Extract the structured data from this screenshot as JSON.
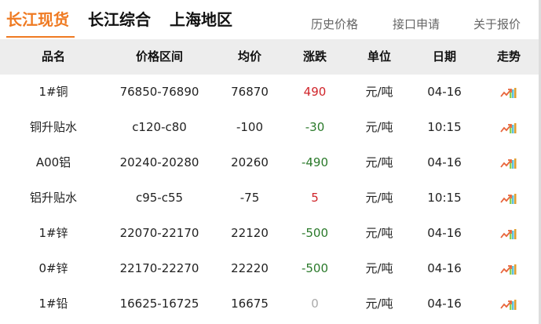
{
  "tabs": [
    "长江现货",
    "长江综合",
    "上海地区"
  ],
  "links": [
    "历史价格",
    "接口申请",
    "关于报价"
  ],
  "columns": [
    "品名",
    "价格区间",
    "均价",
    "涨跌",
    "单位",
    "日期",
    "走势"
  ],
  "colors": {
    "accent": "#ef7a22",
    "up": "#d0242a",
    "down": "#2b7a2b",
    "flat": "#aaaaaa"
  },
  "rows": [
    {
      "name": "1#铜",
      "range": "76850-76890",
      "avg": "76870",
      "change": "490",
      "dir": "up",
      "unit": "元/吨",
      "date": "04-16",
      "trend": "trend-chart-icon"
    },
    {
      "name": "铜升贴水",
      "range": "c120-c80",
      "avg": "-100",
      "change": "-30",
      "dir": "down",
      "unit": "元/吨",
      "date": "10:15",
      "trend": "trend-chart-icon"
    },
    {
      "name": "A00铝",
      "range": "20240-20280",
      "avg": "20260",
      "change": "-490",
      "dir": "down",
      "unit": "元/吨",
      "date": "04-16",
      "trend": "trend-chart-icon"
    },
    {
      "name": "铝升贴水",
      "range": "c95-c55",
      "avg": "-75",
      "change": "5",
      "dir": "up",
      "unit": "元/吨",
      "date": "10:15",
      "trend": "trend-chart-icon"
    },
    {
      "name": "1#锌",
      "range": "22070-22170",
      "avg": "22120",
      "change": "-500",
      "dir": "down",
      "unit": "元/吨",
      "date": "04-16",
      "trend": "trend-chart-icon"
    },
    {
      "name": "0#锌",
      "range": "22170-22270",
      "avg": "22220",
      "change": "-500",
      "dir": "down",
      "unit": "元/吨",
      "date": "04-16",
      "trend": "trend-chart-icon"
    },
    {
      "name": "1#铅",
      "range": "16625-16725",
      "avg": "16675",
      "change": "0",
      "dir": "flat",
      "unit": "元/吨",
      "date": "04-16",
      "trend": "trend-chart-icon"
    }
  ]
}
